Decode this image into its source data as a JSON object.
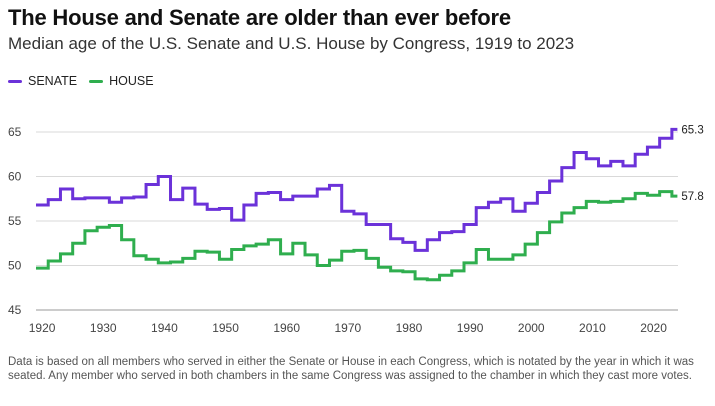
{
  "header": {
    "title": "The House and Senate are older than ever before",
    "subtitle": "Median age of the U.S. Senate and U.S. House by Congress, 1919 to 2023"
  },
  "legend": [
    {
      "label": "SENATE",
      "color": "#6b32d9"
    },
    {
      "label": "HOUSE",
      "color": "#2fae4e"
    }
  ],
  "footnote": "Data is based on all members who served in either the Senate or House in each Congress, which is notated by the year in which it was seated. Any member who served in both chambers in the same Congress was assigned to the chamber in which they cast more votes.",
  "chart_data": {
    "type": "line",
    "style": "step",
    "title": "The House and Senate are older than ever before",
    "subtitle": "Median age of the U.S. Senate and U.S. House by Congress, 1919 to 2023",
    "xlabel": "",
    "ylabel": "",
    "xlim": [
      1919,
      2024
    ],
    "ylim": [
      45,
      65
    ],
    "grid": true,
    "x_ticks": [
      1920,
      1930,
      1940,
      1950,
      1960,
      1970,
      1980,
      1990,
      2000,
      2010,
      2020
    ],
    "y_ticks": [
      45,
      50,
      55,
      60,
      65
    ],
    "x": [
      1919,
      1921,
      1923,
      1925,
      1927,
      1929,
      1931,
      1933,
      1935,
      1937,
      1939,
      1941,
      1943,
      1945,
      1947,
      1949,
      1951,
      1953,
      1955,
      1957,
      1959,
      1961,
      1963,
      1965,
      1967,
      1969,
      1971,
      1973,
      1975,
      1977,
      1979,
      1981,
      1983,
      1985,
      1987,
      1989,
      1991,
      1993,
      1995,
      1997,
      1999,
      2001,
      2003,
      2005,
      2007,
      2009,
      2011,
      2013,
      2015,
      2017,
      2019,
      2021,
      2023
    ],
    "series": [
      {
        "name": "SENATE",
        "color": "#6b32d9",
        "end_label": "65.3",
        "values": [
          56.8,
          57.4,
          58.6,
          57.5,
          57.6,
          57.6,
          57.1,
          57.6,
          57.7,
          59.1,
          60.0,
          57.4,
          58.7,
          56.9,
          56.3,
          56.4,
          55.1,
          56.8,
          58.1,
          58.2,
          57.4,
          57.8,
          57.8,
          58.6,
          59.0,
          56.1,
          55.8,
          54.6,
          54.6,
          53.0,
          52.6,
          51.7,
          52.9,
          53.7,
          53.8,
          54.6,
          56.5,
          57.1,
          57.5,
          56.1,
          57.0,
          58.2,
          59.5,
          61.0,
          62.7,
          62.0,
          61.2,
          61.7,
          61.2,
          62.5,
          63.3,
          64.3,
          65.3
        ]
      },
      {
        "name": "HOUSE",
        "color": "#2fae4e",
        "end_label": "57.8",
        "values": [
          49.7,
          50.5,
          51.3,
          52.5,
          53.9,
          54.3,
          54.5,
          52.9,
          51.1,
          50.7,
          50.3,
          50.4,
          50.8,
          51.6,
          51.5,
          50.7,
          51.8,
          52.2,
          52.4,
          52.9,
          51.3,
          52.5,
          51.2,
          50.0,
          50.6,
          51.6,
          51.7,
          50.8,
          49.8,
          49.4,
          49.3,
          48.5,
          48.4,
          48.9,
          49.4,
          50.3,
          51.8,
          50.7,
          50.7,
          51.2,
          52.4,
          53.7,
          54.9,
          55.9,
          56.5,
          57.2,
          57.1,
          57.2,
          57.5,
          58.1,
          57.9,
          58.3,
          57.8
        ]
      }
    ]
  }
}
